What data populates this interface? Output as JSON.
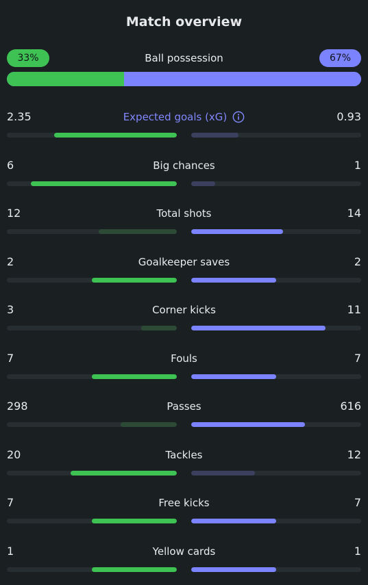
{
  "title": "Match overview",
  "possession": {
    "label": "Ball possession",
    "home": "33%",
    "away": "67%",
    "home_value": 33,
    "away_value": 67
  },
  "colors": {
    "home_strong": "#3fc254",
    "home_weak": "#2d4a37",
    "away_strong": "#7b83ff",
    "away_weak": "#3b405e",
    "accent": "#8188ff"
  },
  "stats": [
    {
      "label": "Expected goals (xG)",
      "home": "2.35",
      "away": "0.93",
      "home_fill": 0.72,
      "away_fill": 0.28,
      "info": true
    },
    {
      "label": "Big chances",
      "home": "6",
      "away": "1",
      "home_fill": 0.86,
      "away_fill": 0.14
    },
    {
      "label": "Total shots",
      "home": "12",
      "away": "14",
      "home_fill": 0.46,
      "away_fill": 0.54
    },
    {
      "label": "Goalkeeper saves",
      "home": "2",
      "away": "2",
      "home_fill": 0.5,
      "away_fill": 0.5
    },
    {
      "label": "Corner kicks",
      "home": "3",
      "away": "11",
      "home_fill": 0.21,
      "away_fill": 0.79
    },
    {
      "label": "Fouls",
      "home": "7",
      "away": "7",
      "home_fill": 0.5,
      "away_fill": 0.5
    },
    {
      "label": "Passes",
      "home": "298",
      "away": "616",
      "home_fill": 0.33,
      "away_fill": 0.67
    },
    {
      "label": "Tackles",
      "home": "20",
      "away": "12",
      "home_fill": 0.625,
      "away_fill": 0.375
    },
    {
      "label": "Free kicks",
      "home": "7",
      "away": "7",
      "home_fill": 0.5,
      "away_fill": 0.5
    },
    {
      "label": "Yellow cards",
      "home": "1",
      "away": "1",
      "home_fill": 0.5,
      "away_fill": 0.5
    }
  ]
}
